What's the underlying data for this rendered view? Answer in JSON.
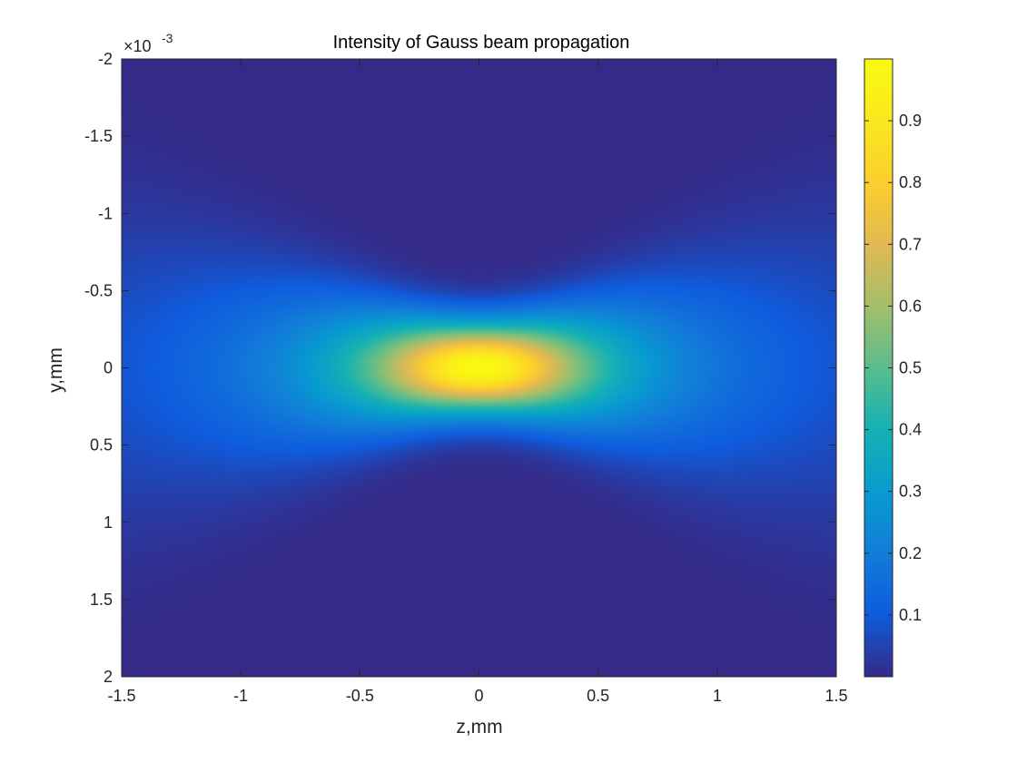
{
  "chart_data": {
    "type": "heatmap",
    "title": "Intensity of Gauss beam propagation",
    "xlabel": "z,mm",
    "ylabel": "y,mm",
    "x_range": [
      -1.5,
      1.5
    ],
    "y_range": [
      -2,
      2
    ],
    "y_direction": "reversed",
    "x_ticks": [
      "-1.5",
      "-1",
      "-0.5",
      "0",
      "0.5",
      "1",
      "1.5"
    ],
    "x_tick_values": [
      -1.5,
      -1,
      -0.5,
      0,
      0.5,
      1,
      1.5
    ],
    "y_ticks": [
      "-2",
      "-1.5",
      "-1",
      "-0.5",
      "0",
      "0.5",
      "1",
      "1.5",
      "2"
    ],
    "y_tick_values": [
      -2,
      -1.5,
      -1,
      -0.5,
      0,
      0.5,
      1,
      1.5,
      2
    ],
    "y_exponent_base": "×10",
    "y_exponent_power": "-3",
    "intensity_range": [
      0,
      1
    ],
    "peak": {
      "z": 0,
      "y": 0,
      "value": 1
    },
    "colorbar": {
      "range": [
        0,
        1
      ],
      "ticks": [
        "0.1",
        "0.2",
        "0.3",
        "0.4",
        "0.5",
        "0.6",
        "0.7",
        "0.8",
        "0.9"
      ],
      "tick_values": [
        0.1,
        0.2,
        0.3,
        0.4,
        0.5,
        0.6,
        0.7,
        0.8,
        0.9
      ],
      "colormap": "parula"
    },
    "grid": false
  }
}
